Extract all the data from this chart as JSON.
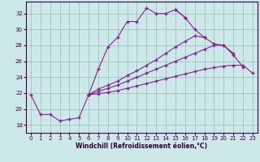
{
  "background_color": "#cce8e8",
  "grid_color": "#99bbbb",
  "line_color": "#882288",
  "x_ticks": [
    0,
    1,
    2,
    3,
    4,
    5,
    6,
    7,
    8,
    9,
    10,
    11,
    12,
    13,
    14,
    15,
    16,
    17,
    18,
    19,
    20,
    21,
    22,
    23
  ],
  "y_ticks": [
    18,
    20,
    22,
    24,
    26,
    28,
    30,
    32
  ],
  "xlim": [
    -0.5,
    23.5
  ],
  "ylim": [
    17.0,
    33.5
  ],
  "xlabel": "Windchill (Refroidissement éolien,°C)",
  "series": [
    [
      21.8,
      19.3,
      19.3,
      18.5,
      18.7,
      18.9,
      21.8,
      25.0,
      27.8,
      29.0,
      31.0,
      31.0,
      32.7,
      32.0,
      32.0,
      32.5,
      31.5,
      null,
      null,
      null,
      null,
      null,
      null,
      null
    ],
    [
      null,
      null,
      null,
      null,
      null,
      null,
      null,
      null,
      null,
      null,
      null,
      null,
      null,
      null,
      null,
      32.5,
      31.5,
      30.0,
      29.0,
      null,
      null,
      null,
      null,
      null
    ],
    [
      null,
      null,
      null,
      null,
      null,
      null,
      21.8,
      22.5,
      23.0,
      23.5,
      24.2,
      24.8,
      25.5,
      26.2,
      27.0,
      27.8,
      28.5,
      29.2,
      29.0,
      28.2,
      28.0,
      26.8,
      25.3,
      null
    ],
    [
      null,
      null,
      null,
      null,
      null,
      null,
      21.8,
      22.2,
      22.6,
      23.0,
      23.5,
      24.0,
      24.5,
      25.0,
      25.5,
      26.0,
      26.5,
      27.0,
      27.5,
      28.0,
      28.0,
      27.0,
      null,
      null
    ],
    [
      null,
      null,
      null,
      null,
      null,
      null,
      21.8,
      21.9,
      22.1,
      22.3,
      22.6,
      22.9,
      23.2,
      23.5,
      23.8,
      24.1,
      24.4,
      24.7,
      25.0,
      25.2,
      25.4,
      25.5,
      25.5,
      24.5
    ]
  ]
}
